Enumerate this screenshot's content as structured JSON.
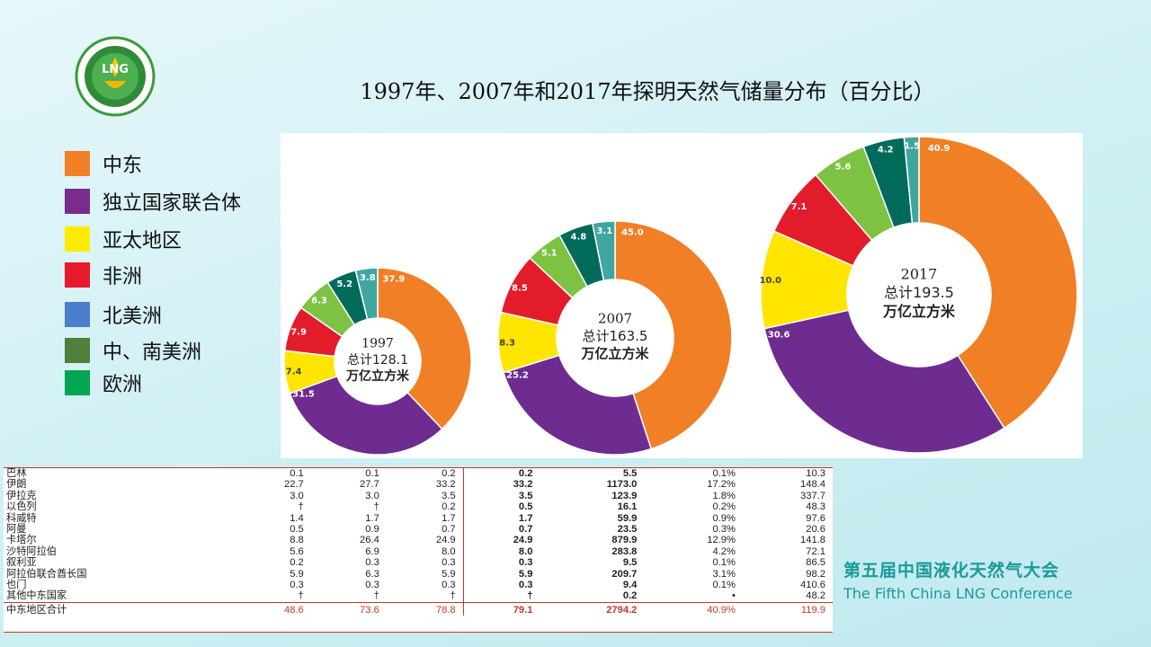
{
  "title": "1997年、2007年和2017年探明天然气储量分布（百分比）",
  "logo": {
    "text": "LNG"
  },
  "legend": [
    {
      "label": "中东",
      "color": "#f07f26"
    },
    {
      "label": "独立国家联合体",
      "color": "#7a2b8e"
    },
    {
      "label": "亚太地区",
      "color": "#ffeb00"
    },
    {
      "label": "非洲",
      "color": "#e8192c"
    },
    {
      "label": "北美洲",
      "color": "#4a7ecb"
    },
    {
      "label": "中、南美洲",
      "color": "#4f7f3a"
    },
    {
      "label": "欧洲",
      "color": "#00a651"
    }
  ],
  "chart_data": [
    {
      "type": "pie",
      "year": "1997",
      "center_label": [
        "1997",
        "总计128.1",
        "万亿立方米"
      ],
      "slices": [
        {
          "label": "中东",
          "value": 37.9,
          "color": "#f07f26"
        },
        {
          "label": "独立国家联合体",
          "value": 31.5,
          "color": "#6e2c91"
        },
        {
          "label": "亚太地区",
          "value": 7.4,
          "color": "#ffe500"
        },
        {
          "label": "非洲",
          "value": 7.9,
          "color": "#e31c2c"
        },
        {
          "label": "中、南美洲",
          "value": 6.3,
          "color": "#7dc242"
        },
        {
          "label": "欧洲",
          "value": 5.2,
          "color": "#006b5a"
        },
        {
          "label": "北美洲",
          "value": 3.8,
          "color": "#3fa6a0"
        }
      ]
    },
    {
      "type": "pie",
      "year": "2007",
      "center_label": [
        "2007",
        "总计163.5",
        "万亿立方米"
      ],
      "slices": [
        {
          "label": "中东",
          "value": 45.0,
          "color": "#f07f26"
        },
        {
          "label": "独立国家联合体",
          "value": 25.2,
          "color": "#6e2c91"
        },
        {
          "label": "亚太地区",
          "value": 8.3,
          "color": "#ffe500"
        },
        {
          "label": "非洲",
          "value": 8.5,
          "color": "#e31c2c"
        },
        {
          "label": "中、南美洲",
          "value": 5.1,
          "color": "#7dc242"
        },
        {
          "label": "欧洲",
          "value": 4.8,
          "color": "#006b5a"
        },
        {
          "label": "北美洲",
          "value": 3.1,
          "color": "#3fa6a0"
        }
      ]
    },
    {
      "type": "pie",
      "year": "2017",
      "center_label": [
        "2017",
        "总计193.5",
        "万亿立方米"
      ],
      "slices": [
        {
          "label": "中东",
          "value": 40.9,
          "color": "#f07f26"
        },
        {
          "label": "独立国家联合体",
          "value": 30.6,
          "color": "#6e2c91"
        },
        {
          "label": "亚太地区",
          "value": 10.0,
          "color": "#ffe500"
        },
        {
          "label": "非洲",
          "value": 7.1,
          "color": "#e31c2c"
        },
        {
          "label": "中、南美洲",
          "value": 5.6,
          "color": "#7dc242"
        },
        {
          "label": "欧洲",
          "value": 4.2,
          "color": "#006b5a"
        },
        {
          "label": "北美洲",
          "value": 1.5,
          "color": "#3fa6a0"
        }
      ]
    }
  ],
  "table": {
    "rows": [
      [
        "巴林",
        "0.1",
        "0.1",
        "0.2",
        "0.2",
        "5.5",
        "0.1%",
        "10.3"
      ],
      [
        "伊朗",
        "22.7",
        "27.7",
        "33.2",
        "33.2",
        "1173.0",
        "17.2%",
        "148.4"
      ],
      [
        "伊拉克",
        "3.0",
        "3.0",
        "3.5",
        "3.5",
        "123.9",
        "1.8%",
        "337.7"
      ],
      [
        "以色列",
        "†",
        "†",
        "0.2",
        "0.5",
        "16.1",
        "0.2%",
        "48.3"
      ],
      [
        "科威特",
        "1.4",
        "1.7",
        "1.7",
        "1.7",
        "59.9",
        "0.9%",
        "97.6"
      ],
      [
        "阿曼",
        "0.5",
        "0.9",
        "0.7",
        "0.7",
        "23.5",
        "0.3%",
        "20.6"
      ],
      [
        "卡塔尔",
        "8.8",
        "26.4",
        "24.9",
        "24.9",
        "879.9",
        "12.9%",
        "141.8"
      ],
      [
        "沙特阿拉伯",
        "5.6",
        "6.9",
        "8.0",
        "8.0",
        "283.8",
        "4.2%",
        "72.1"
      ],
      [
        "叙利亚",
        "0.2",
        "0.3",
        "0.3",
        "0.3",
        "9.5",
        "0.1%",
        "86.5"
      ],
      [
        "阿拉伯联合酋长国",
        "5.9",
        "6.3",
        "5.9",
        "5.9",
        "209.7",
        "3.1%",
        "98.2"
      ],
      [
        "也门",
        "0.3",
        "0.3",
        "0.3",
        "0.3",
        "9.4",
        "0.1%",
        "410.6"
      ],
      [
        "其他中东国家",
        "†",
        "†",
        "†",
        "†",
        "0.2",
        "•",
        "48.2"
      ]
    ],
    "total": [
      "中东地区合计",
      "48.6",
      "73.6",
      "78.8",
      "79.1",
      "2794.2",
      "40.9%",
      "119.9"
    ]
  },
  "conference": {
    "cn": "第五届中国液化天然气大会",
    "en": "The Fifth China LNG Conference"
  }
}
